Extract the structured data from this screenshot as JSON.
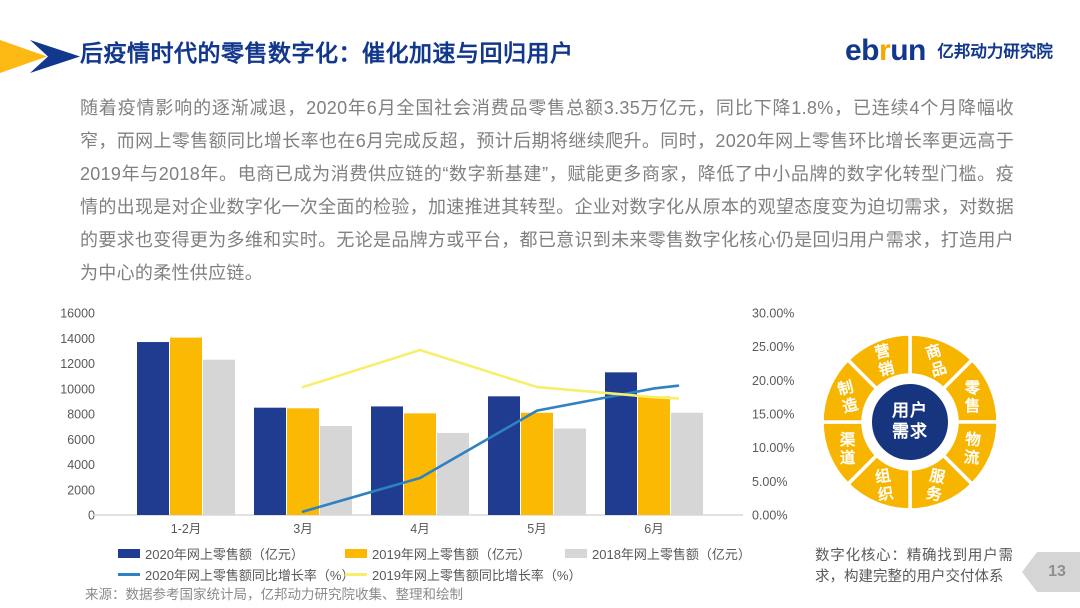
{
  "header": {
    "title": "后疫情时代的零售数字化：催化加速与回归用户",
    "logo": {
      "eb": "eb",
      "r": "r",
      "un": "un",
      "cn": "亿邦动力研究院"
    }
  },
  "body_text": "随着疫情影响的逐渐减退，2020年6月全国社会消费品零售总额3.35万亿元，同比下降1.8%，已连续4个月降幅收窄，而网上零售额同比增长率也在6月完成反超，预计后期将继续爬升。同时，2020年网上零售环比增长率更远高于2019年与2018年。电商已成为消费供应链的“数字新基建”，赋能更多商家，降低了中小品牌的数字化转型门槛。疫情的出现是对企业数字化一次全面的检验，加速推进其转型。企业对数字化从原本的观望态度变为迫切需求，对数据的要求也变得更为多维和实时。无论是品牌方或平台，都已意识到未来零售数字化核心仍是回归用户需求，打造用户为中心的柔性供应链。",
  "chart_data": {
    "type": "bar+line combo",
    "categories": [
      "1-2月",
      "3月",
      "4月",
      "5月",
      "6月"
    ],
    "bar_series": [
      {
        "name": "2020年网上零售额（亿元）",
        "color": "#1F3C90",
        "values": [
          13700,
          8500,
          8600,
          9400,
          11300
        ]
      },
      {
        "name": "2019年网上零售额（亿元）",
        "color": "#FBB903",
        "values": [
          14050,
          8450,
          8050,
          8100,
          9400
        ]
      },
      {
        "name": "2018年网上零售额（亿元）",
        "color": "#D6D6D6",
        "values": [
          12300,
          7050,
          6500,
          6850,
          8100
        ]
      }
    ],
    "line_series": [
      {
        "name": "2020年网上零售额同比增长率（%）",
        "color": "#2E81C4",
        "values": [
          null,
          0.5,
          5.5,
          15.5,
          18.8
        ]
      },
      {
        "name": "2019年网上零售额同比增长率（%）",
        "color": "#F7EF6B",
        "values": [
          null,
          19.0,
          24.5,
          19.0,
          17.5
        ]
      }
    ],
    "left_axis": {
      "min": 0,
      "max": 16000,
      "step": 2000
    },
    "right_axis": {
      "min": 0,
      "max": 30,
      "step": 5,
      "format": "percent2"
    },
    "grid": false,
    "legend_position": "bottom"
  },
  "diagram": {
    "center_line1": "用户",
    "center_line2": "需求",
    "segments": [
      "商品",
      "零售",
      "物流",
      "服务",
      "组织",
      "渠道",
      "制造",
      "营销"
    ],
    "ring_color": "#F8B500",
    "center_color": "#17357E",
    "caption": "数字化核心：精确找到用户需求，构建完整的用户交付体系"
  },
  "source": "来源：数据参考国家统计局，亿邦动力研究院收集、整理和绘制",
  "page_number": "13",
  "colors": {
    "title_blue": "#12388E",
    "body_gray": "#808080",
    "axis_gray": "#595959",
    "logo_accent": "#F5A800"
  }
}
